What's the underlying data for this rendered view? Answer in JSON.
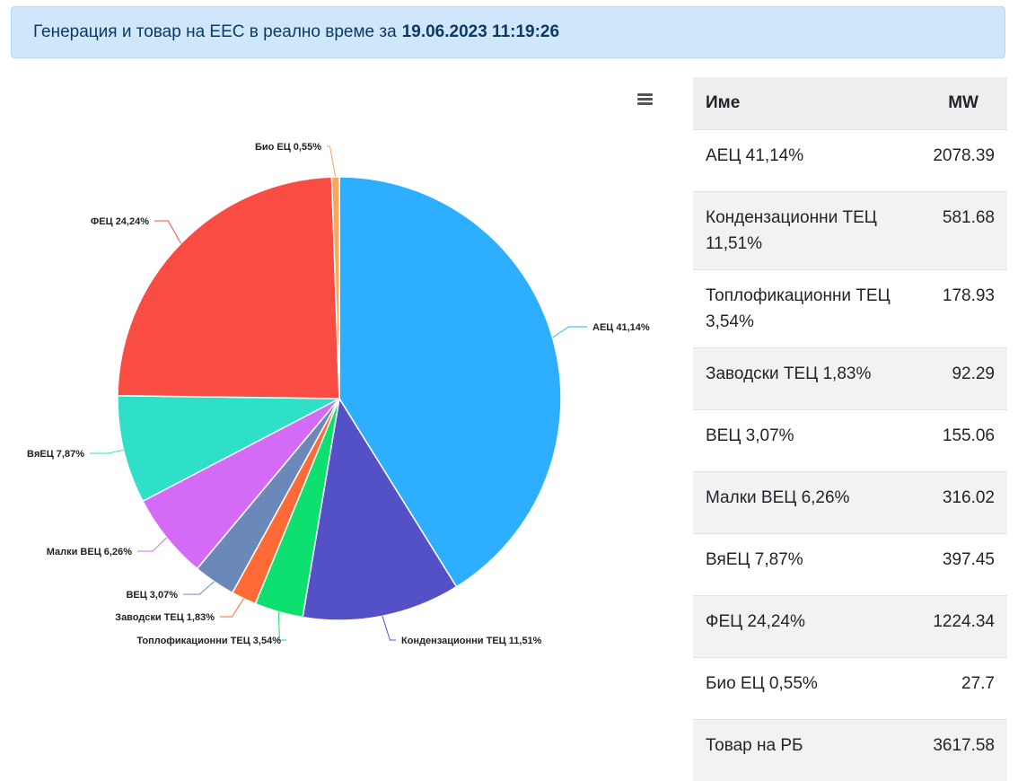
{
  "banner": {
    "text": "Генерация и товар на ЕЕС в реално време за",
    "datetime": "19.06.2023 11:19:26"
  },
  "menu_icon": "hamburger-icon",
  "table": {
    "headers": [
      "Име",
      "MW"
    ],
    "rows": [
      {
        "name": "АЕЦ 41,14%",
        "mw": "2078.39"
      },
      {
        "name": "Кондензационни ТЕЦ 11,51%",
        "mw": "581.68"
      },
      {
        "name": "Топлофикационни ТЕЦ 3,54%",
        "mw": "178.93"
      },
      {
        "name": "Заводски ТЕЦ 1,83%",
        "mw": "92.29"
      },
      {
        "name": "ВЕЦ 3,07%",
        "mw": "155.06"
      },
      {
        "name": "Малки ВЕЦ 6,26%",
        "mw": "316.02"
      },
      {
        "name": "ВяЕЦ 7,87%",
        "mw": "397.45"
      },
      {
        "name": "ФЕЦ 24,24%",
        "mw": "1224.34"
      },
      {
        "name": "Био ЕЦ 0,55%",
        "mw": "27.7"
      },
      {
        "name": "Товар на РБ",
        "mw": "3617.58"
      }
    ]
  },
  "chart_data": {
    "type": "pie",
    "slices": [
      {
        "label": "АЕЦ 41,14%",
        "value": 41.14,
        "color": "#2eaeff"
      },
      {
        "label": "Кондензационни ТЕЦ 11,51%",
        "value": 11.51,
        "color": "#5450c6"
      },
      {
        "label": "Топлофикационни ТЕЦ 3,54%",
        "value": 3.54,
        "color": "#0ee070"
      },
      {
        "label": "Заводски ТЕЦ 1,83%",
        "value": 1.83,
        "color": "#ff6a36"
      },
      {
        "label": "ВЕЦ 3,07%",
        "value": 3.07,
        "color": "#6a89b8"
      },
      {
        "label": "Малки ВЕЦ 6,26%",
        "value": 6.26,
        "color": "#d46bf7"
      },
      {
        "label": "ВяЕЦ 7,87%",
        "value": 7.87,
        "color": "#2fe0c8"
      },
      {
        "label": "ФЕЦ 24,24%",
        "value": 24.24,
        "color": "#f94d44"
      },
      {
        "label": "Био ЕЦ 0,55%",
        "value": 0.55,
        "color": "#f7a65a"
      }
    ]
  }
}
